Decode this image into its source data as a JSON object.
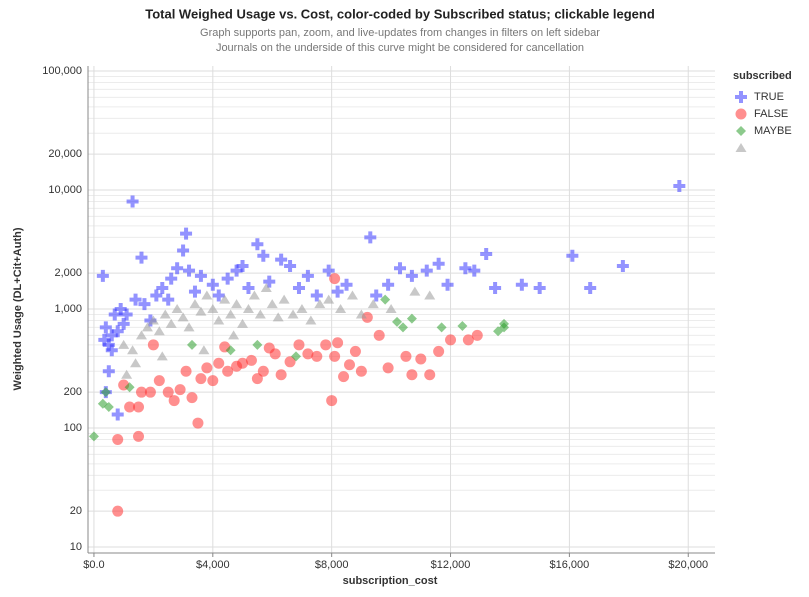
{
  "chart_data": {
    "type": "scatter",
    "title": "Total Weighed Usage vs. Cost, color-coded by Subscribed status; clickable legend",
    "subtitle": [
      "Graph supports pan, zoom, and live-updates from changes in filters on left sidebar",
      "Journals on the underside of this curve might be considered for cancellation"
    ],
    "x_label": "subscription_cost",
    "y_label": "Weighted Usage (DL+Cit+Auth)",
    "legend_title": "subscribed",
    "legend": "right",
    "log_y": true,
    "grid": true,
    "xlim": [
      -200,
      20900
    ],
    "ylim": [
      10,
      100000
    ],
    "xticks": [
      {
        "value": 0,
        "label": "$0.0"
      },
      {
        "value": 4000,
        "label": "$4,000"
      },
      {
        "value": 8000,
        "label": "$8,000"
      },
      {
        "value": 12000,
        "label": "$12,000"
      },
      {
        "value": 16000,
        "label": "$16,000"
      },
      {
        "value": 20000,
        "label": "$20,000"
      }
    ],
    "yticks": [
      10,
      20,
      100,
      200,
      {
        "value": 1000,
        "label": "1,000"
      },
      {
        "value": 2000,
        "label": "2,000"
      },
      {
        "value": 10000,
        "label": "10,000"
      },
      {
        "value": 20000,
        "label": "20,000"
      },
      {
        "value": 100000,
        "label": "100,000"
      }
    ],
    "y_minor_grid": [
      30,
      40,
      50,
      60,
      70,
      80,
      90,
      300,
      400,
      500,
      600,
      700,
      800,
      900,
      3000,
      4000,
      5000,
      6000,
      7000,
      8000,
      9000,
      30000,
      40000,
      50000,
      60000,
      70000,
      80000,
      90000
    ],
    "series": [
      {
        "name": "TRUE",
        "marker": "plus",
        "color": "#3b3bff",
        "x": [
          300,
          400,
          350,
          500,
          600,
          700,
          800,
          900,
          1000,
          1100,
          1300,
          1400,
          1600,
          1700,
          1900,
          2100,
          2300,
          2500,
          2600,
          2800,
          3000,
          3100,
          3200,
          3400,
          3600,
          4000,
          4200,
          4500,
          4800,
          5000,
          5200,
          5500,
          5700,
          5900,
          6300,
          6600,
          6900,
          7200,
          7500,
          7900,
          8200,
          8500,
          9300,
          9500,
          9900,
          10300,
          10700,
          11200,
          11600,
          11900,
          12500,
          12800,
          13200,
          13500,
          14400,
          15000,
          16100,
          16700,
          17800,
          19700,
          400,
          500,
          800,
          600
        ],
        "values": [
          1900,
          700,
          550,
          500,
          450,
          900,
          650,
          1000,
          750,
          900,
          8000,
          1200,
          2700,
          1100,
          800,
          1300,
          1500,
          1200,
          1800,
          2200,
          3100,
          4300,
          2100,
          1400,
          1900,
          1600,
          1300,
          1800,
          2100,
          2300,
          1500,
          3500,
          2800,
          1700,
          2600,
          2300,
          1500,
          1900,
          1300,
          2100,
          1400,
          1600,
          4000,
          1300,
          1600,
          2200,
          1900,
          2100,
          2400,
          1600,
          2200,
          2100,
          2900,
          1500,
          1600,
          1500,
          2800,
          1500,
          2300,
          10800,
          200,
          300,
          130,
          600
        ]
      },
      {
        "name": "FALSE",
        "marker": "circle",
        "color": "#ff3333",
        "x": [
          800,
          800,
          1200,
          1500,
          1500,
          1000,
          1600,
          1900,
          2200,
          2500,
          2700,
          2900,
          3100,
          3300,
          3500,
          3600,
          3800,
          4000,
          4200,
          4500,
          4800,
          5000,
          5300,
          5500,
          5700,
          5900,
          6100,
          6300,
          6600,
          6900,
          7200,
          7500,
          7800,
          8000,
          8100,
          8200,
          8400,
          8600,
          8800,
          9000,
          9200,
          9600,
          9900,
          10500,
          10700,
          11000,
          11300,
          11600,
          12000,
          12600,
          12900,
          8100,
          2000,
          4400
        ],
        "values": [
          20,
          80,
          150,
          85,
          150,
          230,
          200,
          200,
          250,
          200,
          170,
          210,
          300,
          180,
          110,
          260,
          320,
          250,
          350,
          300,
          330,
          350,
          370,
          260,
          300,
          470,
          420,
          280,
          360,
          500,
          420,
          400,
          500,
          170,
          400,
          520,
          270,
          340,
          440,
          300,
          850,
          600,
          320,
          400,
          280,
          380,
          280,
          440,
          550,
          550,
          600,
          1800,
          500,
          480
        ]
      },
      {
        "name": "MAYBE",
        "marker": "diamond",
        "color": "#2e9e2e",
        "x": [
          0,
          300,
          500,
          400,
          1200,
          3300,
          4600,
          5500,
          6800,
          9800,
          10200,
          10400,
          10700,
          11700,
          12400,
          13600,
          13800,
          13800
        ],
        "values": [
          85,
          160,
          150,
          200,
          220,
          500,
          450,
          500,
          400,
          1200,
          780,
          700,
          830,
          700,
          720,
          650,
          700,
          750
        ]
      },
      {
        "name": null,
        "marker": "triangle",
        "color": "#9a9a9a",
        "x": [
          1000,
          1300,
          1600,
          1800,
          2000,
          2200,
          2400,
          2600,
          2800,
          3000,
          3200,
          3400,
          3600,
          3800,
          4000,
          4200,
          4400,
          4600,
          4800,
          5000,
          5200,
          5400,
          5600,
          5800,
          6000,
          6200,
          6400,
          6700,
          7000,
          7300,
          7600,
          7900,
          8300,
          8700,
          9000,
          9400,
          10000,
          10800,
          11300,
          2300,
          3700,
          4700,
          1400,
          1100
        ],
        "values": [
          500,
          450,
          600,
          700,
          800,
          650,
          900,
          750,
          1000,
          850,
          700,
          1100,
          950,
          1300,
          1000,
          800,
          1200,
          900,
          1100,
          750,
          1000,
          1300,
          900,
          1500,
          1100,
          850,
          1200,
          900,
          1000,
          800,
          1100,
          1200,
          1000,
          1300,
          900,
          1100,
          1000,
          1400,
          1300,
          400,
          450,
          600,
          350,
          280
        ]
      }
    ]
  }
}
